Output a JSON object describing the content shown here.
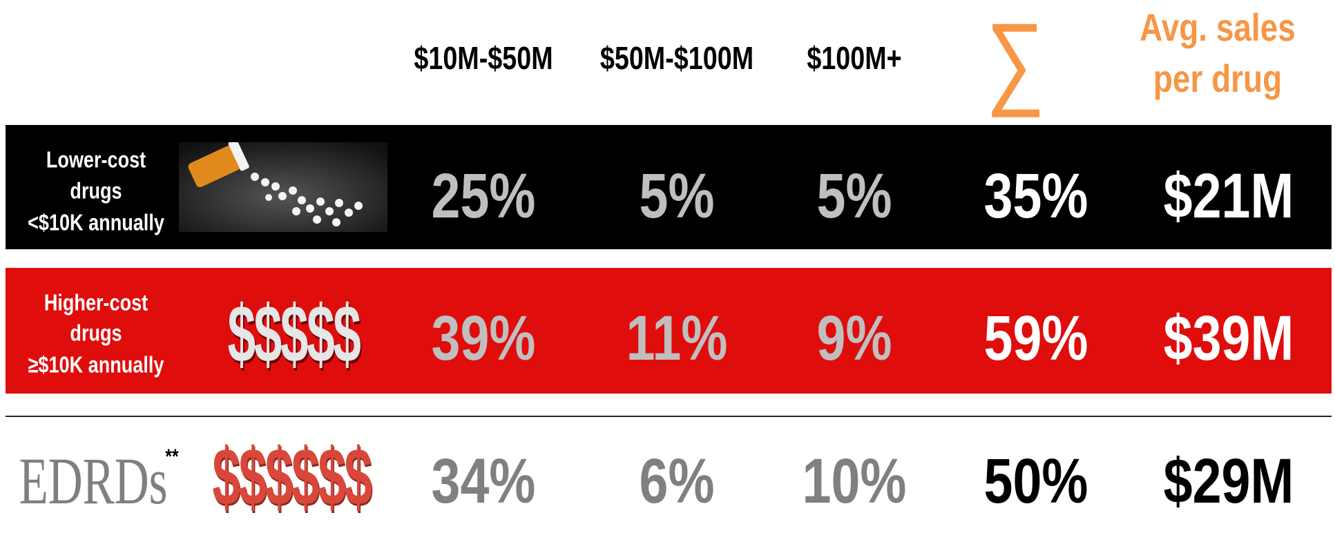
{
  "header": {
    "columns": [
      "$10M-$50M",
      "$50M-$100M",
      "$100M+"
    ],
    "sum_symbol": "∑",
    "avg_title": [
      "Avg. sales",
      "per drug"
    ]
  },
  "rows": [
    {
      "label": [
        "Lower-cost",
        "drugs",
        "<$10K annually"
      ],
      "cells": [
        "25%",
        "5%",
        "5%",
        "35%",
        "$21M"
      ]
    },
    {
      "label": [
        "Higher-cost",
        "drugs",
        "≥$10K annually"
      ],
      "icon_text": "$$$$$",
      "cells": [
        "39%",
        "11%",
        "9%",
        "59%",
        "$39M"
      ]
    },
    {
      "label": [
        "EDRDs"
      ],
      "note": "**",
      "icon_text": "$$$$$$",
      "cells": [
        "34%",
        "6%",
        "10%",
        "50%",
        "$29M"
      ]
    }
  ]
}
